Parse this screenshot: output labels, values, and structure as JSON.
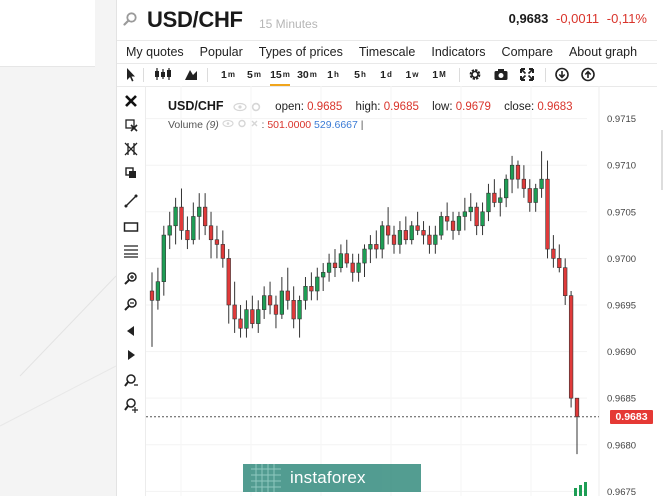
{
  "header": {
    "symbol": "USD/CHF",
    "timeframe": "15 Minutes",
    "last": "0,9683",
    "change": "-0,0011",
    "change_pct": "-0,11%"
  },
  "menu": {
    "items": [
      "My quotes",
      "Popular",
      "Types of prices",
      "Timescale",
      "Indicators",
      "Compare",
      "About graph"
    ]
  },
  "toolbar": {
    "timeframes": [
      {
        "n": "1",
        "u": "m"
      },
      {
        "n": "5",
        "u": "m"
      },
      {
        "n": "15",
        "u": "m"
      },
      {
        "n": "30",
        "u": "m"
      },
      {
        "n": "1",
        "u": "h"
      },
      {
        "n": "5",
        "u": "h"
      },
      {
        "n": "1",
        "u": "d"
      },
      {
        "n": "1",
        "u": "w"
      },
      {
        "n": "1",
        "u": "M"
      }
    ],
    "active_timeframe": "15m"
  },
  "legend": {
    "symbol": "USD/CHF",
    "open_label": "open:",
    "open": "0.9685",
    "high_label": "high:",
    "high": "0.9685",
    "low_label": "low:",
    "low": "0.9679",
    "close_label": "close:",
    "close": "0.9683",
    "volume_label": "Volume",
    "volume_period": "(9)",
    "volume_sep": ":",
    "volume_value1": "501.0000",
    "volume_value2": "529.6667",
    "volume_bar": "|"
  },
  "current_price": "0.9683",
  "watermark": "instaforex",
  "colors": {
    "bull": "#1e9e55",
    "bear": "#e03a3a",
    "accent": "#f0a51c",
    "price_tag": "#e53935"
  },
  "chart_data": {
    "type": "candlestick",
    "ylim": [
      0.96745,
      0.97185
    ],
    "y_ticks": [
      "0.9715",
      "0.9710",
      "0.9705",
      "0.9700",
      "0.9695",
      "0.9690",
      "0.9685",
      "0.9680",
      "0.9675"
    ],
    "current_price": 0.9683,
    "candles": [
      [
        0.96965,
        0.96985,
        0.96905,
        0.96955
      ],
      [
        0.96955,
        0.9699,
        0.96945,
        0.96975
      ],
      [
        0.96975,
        0.97035,
        0.9696,
        0.97025
      ],
      [
        0.97025,
        0.9705,
        0.9701,
        0.97035
      ],
      [
        0.97035,
        0.97065,
        0.97015,
        0.97055
      ],
      [
        0.97055,
        0.97075,
        0.9702,
        0.9703
      ],
      [
        0.9703,
        0.97045,
        0.9701,
        0.9702
      ],
      [
        0.9702,
        0.9706,
        0.97015,
        0.97045
      ],
      [
        0.97045,
        0.9707,
        0.9702,
        0.97055
      ],
      [
        0.97055,
        0.9707,
        0.97025,
        0.97035
      ],
      [
        0.97035,
        0.9705,
        0.97,
        0.9702
      ],
      [
        0.9702,
        0.97035,
        0.97,
        0.97015
      ],
      [
        0.97015,
        0.9703,
        0.9699,
        0.97
      ],
      [
        0.97,
        0.9701,
        0.9693,
        0.9695
      ],
      [
        0.9695,
        0.96975,
        0.9692,
        0.96935
      ],
      [
        0.96935,
        0.9695,
        0.96915,
        0.96925
      ],
      [
        0.96925,
        0.96955,
        0.96915,
        0.96945
      ],
      [
        0.96945,
        0.9696,
        0.96925,
        0.9693
      ],
      [
        0.9693,
        0.96955,
        0.9692,
        0.96945
      ],
      [
        0.96945,
        0.9697,
        0.96935,
        0.9696
      ],
      [
        0.9696,
        0.96975,
        0.9694,
        0.9695
      ],
      [
        0.9695,
        0.9696,
        0.96925,
        0.9694
      ],
      [
        0.9694,
        0.9698,
        0.96935,
        0.96965
      ],
      [
        0.96965,
        0.9699,
        0.96945,
        0.96955
      ],
      [
        0.96955,
        0.9697,
        0.96925,
        0.96935
      ],
      [
        0.96935,
        0.9696,
        0.96915,
        0.96955
      ],
      [
        0.96955,
        0.9698,
        0.96945,
        0.9697
      ],
      [
        0.9697,
        0.96985,
        0.96955,
        0.96965
      ],
      [
        0.96965,
        0.9699,
        0.96955,
        0.9698
      ],
      [
        0.9698,
        0.96995,
        0.96965,
        0.96985
      ],
      [
        0.96985,
        0.97005,
        0.96975,
        0.96995
      ],
      [
        0.96995,
        0.9701,
        0.9698,
        0.9699
      ],
      [
        0.9699,
        0.97015,
        0.96985,
        0.97005
      ],
      [
        0.97005,
        0.9702,
        0.9699,
        0.96995
      ],
      [
        0.96995,
        0.97005,
        0.96975,
        0.96985
      ],
      [
        0.96985,
        0.97005,
        0.96975,
        0.96995
      ],
      [
        0.96995,
        0.97015,
        0.9698,
        0.9701
      ],
      [
        0.9701,
        0.97025,
        0.96995,
        0.97015
      ],
      [
        0.97015,
        0.9703,
        0.97,
        0.9701
      ],
      [
        0.9701,
        0.9704,
        0.97,
        0.97035
      ],
      [
        0.97035,
        0.97055,
        0.97015,
        0.97025
      ],
      [
        0.97025,
        0.97035,
        0.97005,
        0.97015
      ],
      [
        0.97015,
        0.9704,
        0.97005,
        0.9703
      ],
      [
        0.9703,
        0.97045,
        0.97015,
        0.9702
      ],
      [
        0.9702,
        0.9704,
        0.97015,
        0.97035
      ],
      [
        0.97035,
        0.9705,
        0.97025,
        0.9703
      ],
      [
        0.9703,
        0.9704,
        0.97015,
        0.97025
      ],
      [
        0.97025,
        0.97035,
        0.97005,
        0.97015
      ],
      [
        0.97015,
        0.97035,
        0.97005,
        0.97025
      ],
      [
        0.97025,
        0.9705,
        0.9702,
        0.97045
      ],
      [
        0.97045,
        0.9706,
        0.9703,
        0.9704
      ],
      [
        0.9704,
        0.9705,
        0.9702,
        0.9703
      ],
      [
        0.9703,
        0.9705,
        0.97025,
        0.97045
      ],
      [
        0.97045,
        0.97065,
        0.9703,
        0.9705
      ],
      [
        0.9705,
        0.9707,
        0.9704,
        0.97055
      ],
      [
        0.97055,
        0.9706,
        0.97025,
        0.97035
      ],
      [
        0.97035,
        0.9706,
        0.97025,
        0.9705
      ],
      [
        0.9705,
        0.9708,
        0.9704,
        0.9707
      ],
      [
        0.9707,
        0.97085,
        0.97055,
        0.9706
      ],
      [
        0.9706,
        0.97075,
        0.97045,
        0.97065
      ],
      [
        0.97065,
        0.9709,
        0.97055,
        0.97085
      ],
      [
        0.97085,
        0.9711,
        0.9707,
        0.971
      ],
      [
        0.971,
        0.97105,
        0.97075,
        0.97085
      ],
      [
        0.97085,
        0.971,
        0.97065,
        0.97075
      ],
      [
        0.97075,
        0.97085,
        0.9705,
        0.9706
      ],
      [
        0.9706,
        0.9708,
        0.9705,
        0.97075
      ],
      [
        0.97075,
        0.97115,
        0.97065,
        0.97085
      ],
      [
        0.97085,
        0.97105,
        0.97,
        0.9701
      ],
      [
        0.9701,
        0.97025,
        0.9699,
        0.97
      ],
      [
        0.97,
        0.97015,
        0.96985,
        0.9699
      ],
      [
        0.9699,
        0.97,
        0.9695,
        0.9696
      ],
      [
        0.9696,
        0.96965,
        0.9684,
        0.9685
      ],
      [
        0.9685,
        0.9685,
        0.9679,
        0.9683
      ]
    ]
  }
}
